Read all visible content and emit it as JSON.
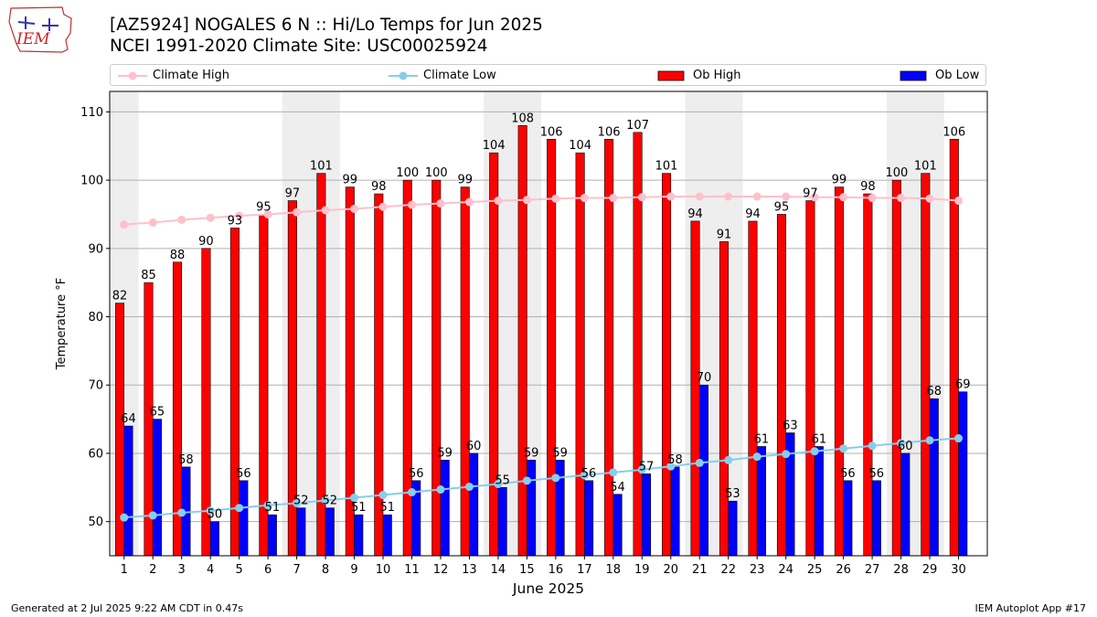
{
  "header": {
    "title_line1": "[AZ5924] NOGALES 6 N :: Hi/Lo Temps for Jun 2025",
    "title_line2": "NCEI 1991-2020 Climate Site: USC00025924",
    "logo_text": "IEM"
  },
  "legend": {
    "placement": "top, above plot",
    "items": [
      {
        "label": "Climate High",
        "color": "#FFC0CB",
        "kind": "line-marker"
      },
      {
        "label": "Climate Low",
        "color": "#87CEEB",
        "kind": "line-marker"
      },
      {
        "label": "Ob High",
        "color": "#FF0000",
        "kind": "bar"
      },
      {
        "label": "Ob Low",
        "color": "#0000FF",
        "kind": "bar"
      }
    ]
  },
  "footer": {
    "generated": "Generated at 2 Jul 2025 9:22 AM CDT in 0.47s",
    "app": "IEM Autoplot App #17"
  },
  "chart_data": {
    "type": "bar",
    "xlabel": "June 2025",
    "ylabel": "Temperature °F",
    "ylim": [
      45,
      113
    ],
    "yticks": [
      50,
      60,
      70,
      80,
      90,
      100,
      110
    ],
    "grid": "horizontal",
    "weekend_shading_color": "#EEEEEE",
    "shaded_day_pairs": [
      [
        1
      ],
      [
        7,
        8
      ],
      [
        14,
        15
      ],
      [
        21,
        22
      ],
      [
        28,
        29
      ]
    ],
    "categories": [
      "1",
      "2",
      "3",
      "4",
      "5",
      "6",
      "7",
      "8",
      "9",
      "10",
      "11",
      "12",
      "13",
      "14",
      "15",
      "16",
      "17",
      "18",
      "19",
      "20",
      "21",
      "22",
      "23",
      "24",
      "25",
      "26",
      "27",
      "28",
      "29",
      "30"
    ],
    "series": [
      {
        "name": "Ob High",
        "type": "bar",
        "color": "#FF0000",
        "values": [
          82,
          85,
          88,
          90,
          93,
          95,
          97,
          101,
          99,
          98,
          100,
          100,
          99,
          104,
          108,
          106,
          104,
          106,
          107,
          101,
          94,
          91,
          94,
          95,
          97,
          99,
          98,
          100,
          101,
          106
        ]
      },
      {
        "name": "Ob Low",
        "type": "bar",
        "color": "#0000FF",
        "values": [
          64,
          65,
          58,
          50,
          56,
          51,
          52,
          52,
          51,
          51,
          56,
          59,
          60,
          55,
          59,
          59,
          56,
          54,
          57,
          58,
          70,
          53,
          61,
          63,
          61,
          56,
          56,
          60,
          68,
          69
        ]
      },
      {
        "name": "Climate High",
        "type": "line",
        "color": "#FFC0CB",
        "values": [
          93.5,
          93.8,
          94.2,
          94.5,
          94.8,
          95.0,
          95.3,
          95.6,
          95.8,
          96.1,
          96.4,
          96.6,
          96.8,
          97.0,
          97.1,
          97.3,
          97.4,
          97.4,
          97.5,
          97.6,
          97.6,
          97.6,
          97.6,
          97.6,
          97.5,
          97.5,
          97.4,
          97.4,
          97.3,
          97.0
        ]
      },
      {
        "name": "Climate Low",
        "type": "line",
        "color": "#87CEEB",
        "values": [
          50.6,
          50.9,
          51.3,
          51.6,
          52.0,
          52.4,
          52.7,
          53.1,
          53.5,
          53.9,
          54.3,
          54.7,
          55.1,
          55.5,
          56.0,
          56.4,
          56.8,
          57.2,
          57.6,
          58.1,
          58.6,
          59.0,
          59.5,
          59.9,
          60.3,
          60.7,
          61.1,
          61.5,
          61.9,
          62.2
        ]
      }
    ]
  }
}
